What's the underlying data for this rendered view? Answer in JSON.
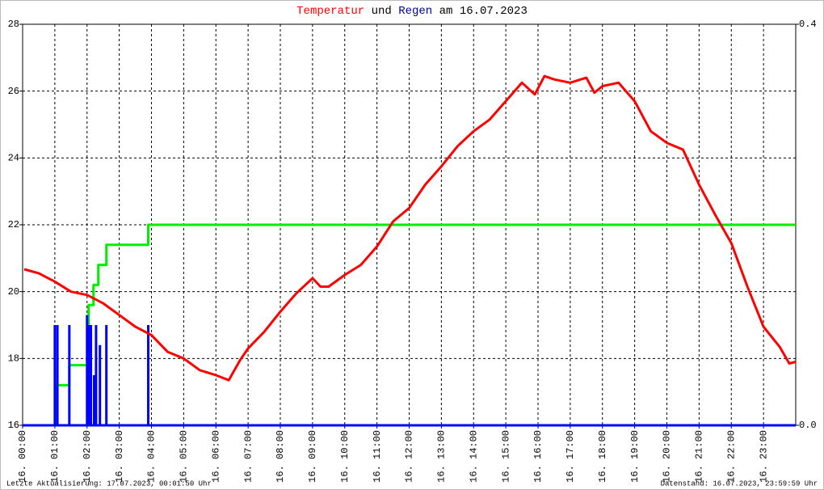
{
  "chart_data": {
    "type": "line",
    "title": [
      "Temperatur",
      "und",
      "Regen",
      "am 16.07.2023"
    ],
    "title_colors": [
      "#ff0000",
      "#000000",
      "#000099",
      "#000000"
    ],
    "annotations": [
      "Letzte Aktualisierung: 17.07.2023, 00:01:50 Uhr",
      "Datenstand: 16.07.2023, 23:59:59 Uhr"
    ],
    "xlim": [
      0,
      24
    ],
    "xticks": [
      {
        "value": 0,
        "label": "16. 00:00"
      },
      {
        "value": 1,
        "label": "16. 01:00"
      },
      {
        "value": 2,
        "label": "16. 02:00"
      },
      {
        "value": 3,
        "label": "16. 03:00"
      },
      {
        "value": 4,
        "label": "16. 04:00"
      },
      {
        "value": 5,
        "label": "16. 05:00"
      },
      {
        "value": 6,
        "label": "16. 06:00"
      },
      {
        "value": 7,
        "label": "16. 07:00"
      },
      {
        "value": 8,
        "label": "16. 08:00"
      },
      {
        "value": 9,
        "label": "16. 09:00"
      },
      {
        "value": 10,
        "label": "16. 10:00"
      },
      {
        "value": 11,
        "label": "16. 11:00"
      },
      {
        "value": 12,
        "label": "16. 12:00"
      },
      {
        "value": 13,
        "label": "16. 13:00"
      },
      {
        "value": 14,
        "label": "16. 14:00"
      },
      {
        "value": 15,
        "label": "16. 15:00"
      },
      {
        "value": 16,
        "label": "16. 16:00"
      },
      {
        "value": 17,
        "label": "16. 17:00"
      },
      {
        "value": 18,
        "label": "16. 18:00"
      },
      {
        "value": 19,
        "label": "16. 19:00"
      },
      {
        "value": 20,
        "label": "16. 20:00"
      },
      {
        "value": 21,
        "label": "16. 21:00"
      },
      {
        "value": 22,
        "label": "16. 22:00"
      },
      {
        "value": 23,
        "label": "16. 23:00"
      }
    ],
    "ylim": [
      16,
      28
    ],
    "yticks": [
      16,
      18,
      20,
      22,
      24,
      26,
      28
    ],
    "y2lim": [
      0,
      0.4
    ],
    "y2ticks": [
      {
        "value": 0,
        "label": "0.0"
      },
      0.4
    ],
    "grid": true,
    "series": [
      {
        "type": "line",
        "color": "#ff0000",
        "x": [
          0.05,
          0.5,
          1,
          1.5,
          2,
          2.5,
          3,
          3.5,
          4,
          4.5,
          5,
          5.5,
          6,
          6.4,
          6.75,
          7,
          7.5,
          8,
          8.5,
          9,
          9.25,
          9.5,
          10,
          10.5,
          11,
          11.5,
          12,
          12.5,
          13,
          13.5,
          14,
          14.5,
          15,
          15.5,
          15.9,
          16.2,
          16.5,
          17,
          17.5,
          17.75,
          18,
          18.5,
          19,
          19.5,
          20,
          20.5,
          21,
          21.5,
          22,
          22.5,
          23,
          23.5,
          23.8,
          24
        ],
        "values": [
          20.67,
          20.55,
          20.3,
          20.0,
          19.9,
          19.65,
          19.3,
          18.95,
          18.7,
          18.2,
          18.0,
          17.65,
          17.5,
          17.35,
          17.95,
          18.3,
          18.8,
          19.4,
          19.95,
          20.4,
          20.15,
          20.15,
          20.5,
          20.8,
          21.35,
          22.1,
          22.5,
          23.2,
          23.75,
          24.35,
          24.8,
          25.15,
          25.7,
          26.25,
          25.9,
          26.45,
          26.35,
          26.25,
          26.4,
          25.95,
          26.15,
          26.25,
          25.7,
          24.8,
          24.45,
          24.25,
          23.2,
          22.3,
          21.45,
          20.15,
          18.95,
          18.35,
          17.85,
          17.9
        ]
      },
      {
        "type": "line",
        "color": "#00ee00",
        "axis": "y2",
        "x": [
          0,
          1.05,
          1.05,
          1.45,
          1.45,
          2.05,
          2.05,
          2.2,
          2.2,
          2.35,
          2.35,
          2.6,
          2.6,
          3.9,
          3.9,
          24
        ],
        "values": [
          0,
          0,
          0.04,
          0.04,
          0.06,
          0.06,
          0.12,
          0.12,
          0.14,
          0.14,
          0.16,
          0.16,
          0.18,
          0.18,
          0.2,
          0.2
        ]
      },
      {
        "type": "bar",
        "color": "#0000ff",
        "axis": "y2",
        "x": [
          1.0,
          1.08,
          1.45,
          2.0,
          2.05,
          2.12,
          2.22,
          2.28,
          2.4,
          2.6,
          3.9
        ],
        "values": [
          0.1,
          0.1,
          0.1,
          0.11,
          0.1,
          0.1,
          0.05,
          0.1,
          0.08,
          0.1,
          0.1
        ]
      }
    ]
  }
}
